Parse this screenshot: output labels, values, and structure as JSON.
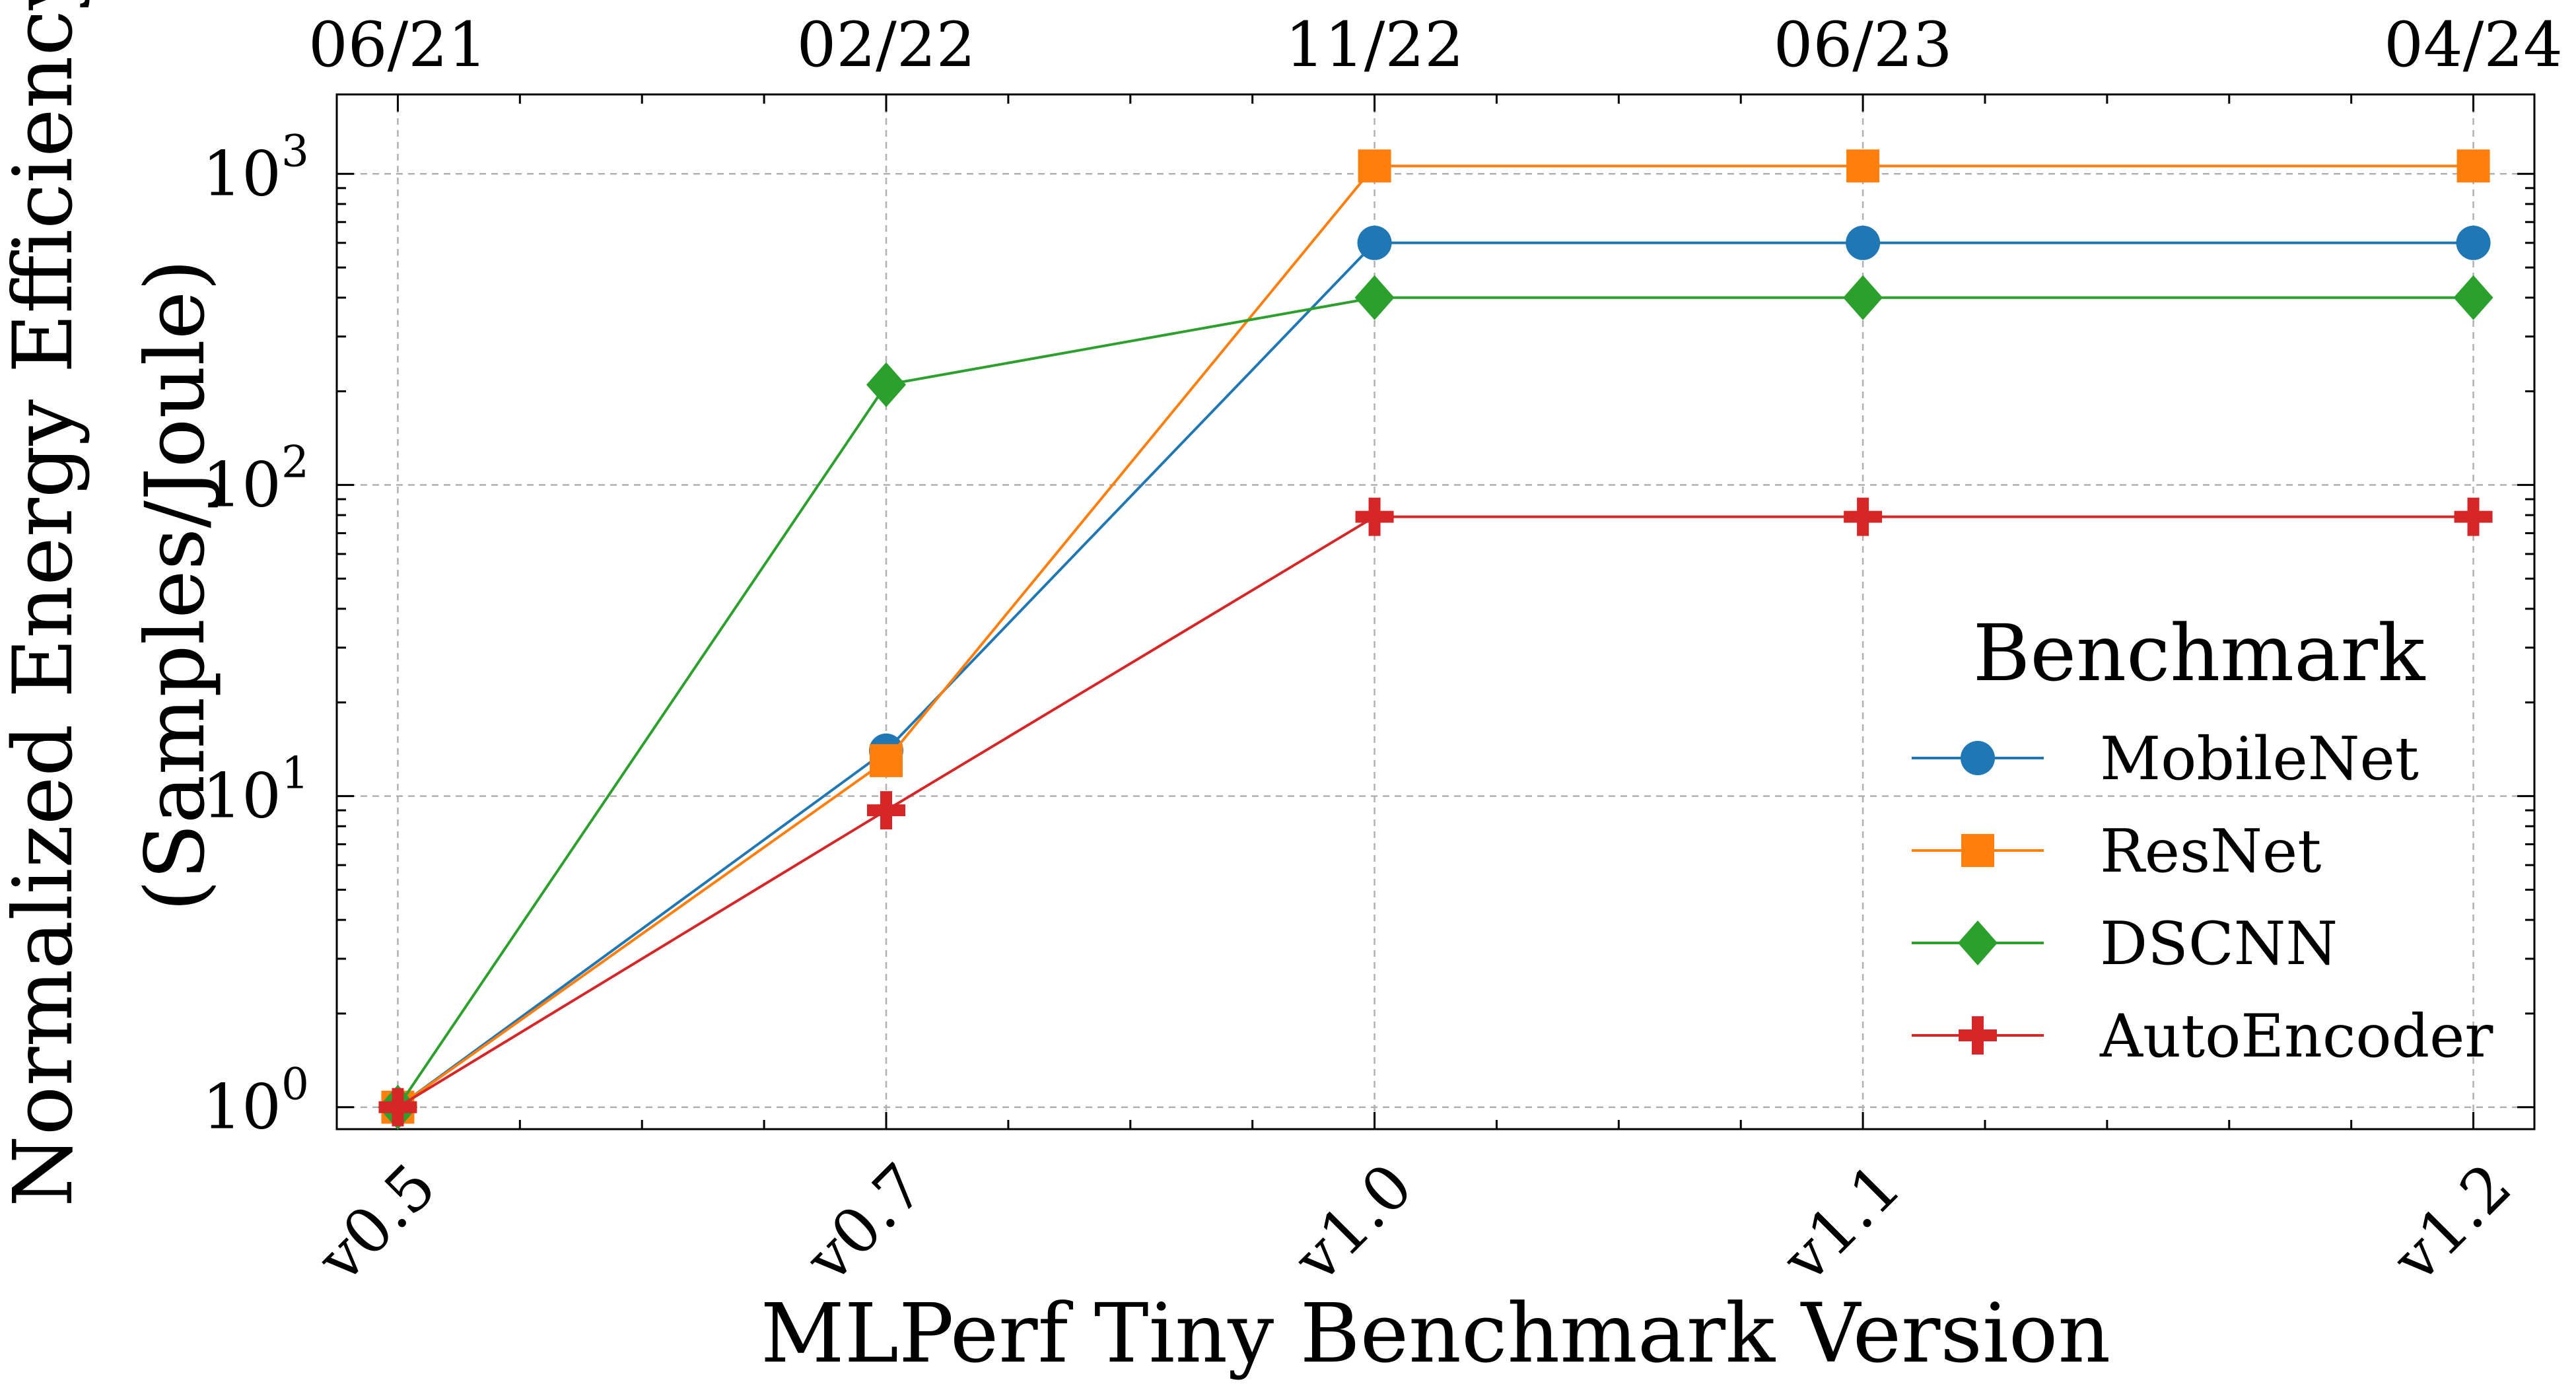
{
  "chart_data": {
    "type": "line",
    "xlabel": "MLPerf Tiny Benchmark Version",
    "ylabel_line1": "Normalized Energy Efficiency",
    "ylabel_line2": "(Samples/Joule)",
    "categories": [
      "v0.5",
      "v0.7",
      "v1.0",
      "v1.1",
      "v1.2"
    ],
    "x_positions": [
      0,
      4,
      8,
      12,
      17
    ],
    "x_range": [
      -0.5,
      17.5
    ],
    "top_axis": {
      "positions": [
        0,
        4,
        8,
        12,
        17
      ],
      "labels": [
        "06/21",
        "02/22",
        "11/22",
        "06/23",
        "04/24"
      ]
    },
    "y_scale": "log",
    "ylim": [
      0.85,
      1800
    ],
    "y_ticks": [
      {
        "value": 1,
        "base": "10",
        "exp": "0"
      },
      {
        "value": 10,
        "base": "10",
        "exp": "1"
      },
      {
        "value": 100,
        "base": "10",
        "exp": "2"
      },
      {
        "value": 1000,
        "base": "10",
        "exp": "3"
      }
    ],
    "grid": true,
    "legend": {
      "title": "Benchmark",
      "position": "right"
    },
    "series": [
      {
        "name": "MobileNet",
        "values": [
          1,
          14,
          600,
          600,
          600
        ],
        "color": "#1f77b4",
        "marker": "circle"
      },
      {
        "name": "ResNet",
        "values": [
          1,
          13,
          1060,
          1060,
          1060
        ],
        "color": "#ff7f0e",
        "marker": "square"
      },
      {
        "name": "DSCNN",
        "values": [
          1,
          210,
          400,
          400,
          400
        ],
        "color": "#2ca02c",
        "marker": "diamond"
      },
      {
        "name": "AutoEncoder",
        "values": [
          1,
          9,
          79,
          79,
          79
        ],
        "color": "#d62728",
        "marker": "plus"
      }
    ]
  }
}
